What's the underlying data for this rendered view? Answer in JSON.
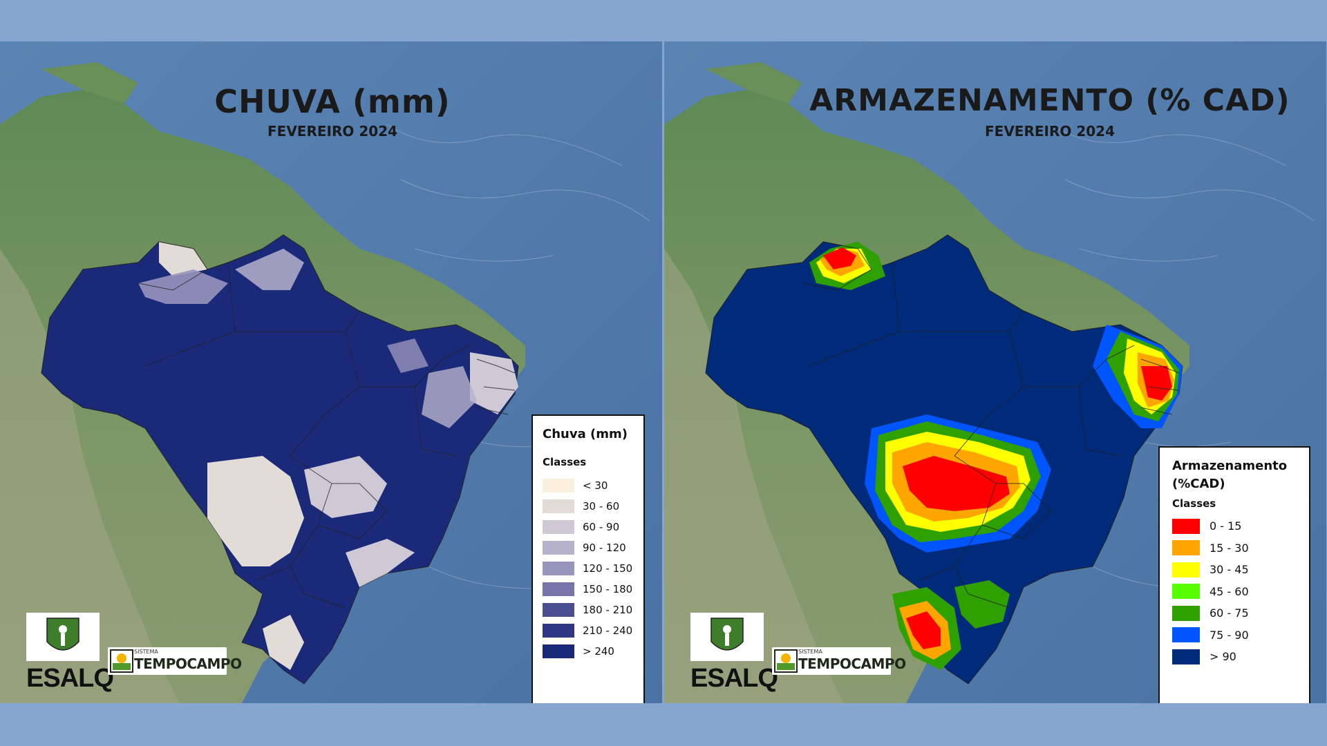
{
  "panels": [
    {
      "title": "CHUVA (mm)",
      "subtitle": "FEVEREIRO 2024",
      "legend": {
        "title": "Chuva (mm)",
        "classes_label": "Classes",
        "items": [
          {
            "label": "< 30",
            "color": "#fbefdd"
          },
          {
            "label": "30 - 60",
            "color": "#e3dcd6"
          },
          {
            "label": "60 - 90",
            "color": "#cfc9d5"
          },
          {
            "label": "90 - 120",
            "color": "#b6b2cc"
          },
          {
            "label": "120 - 150",
            "color": "#9895bd"
          },
          {
            "label": "150 - 180",
            "color": "#7674a9"
          },
          {
            "label": "180 - 210",
            "color": "#4b4d91"
          },
          {
            "label": "210 - 240",
            "color": "#2e3784"
          },
          {
            "label": "> 240",
            "color": "#1a2a78"
          }
        ]
      }
    },
    {
      "title": "ARMAZENAMENTO (% CAD)",
      "subtitle": "FEVEREIRO 2024",
      "legend": {
        "title": "Armazenamento (%CAD)",
        "classes_label": "Classes",
        "items": [
          {
            "label": "0 - 15",
            "color": "#ff0000"
          },
          {
            "label": "15 - 30",
            "color": "#ffa500"
          },
          {
            "label": "30 - 45",
            "color": "#ffff00"
          },
          {
            "label": "45 - 60",
            "color": "#55ff00"
          },
          {
            "label": "60 - 75",
            "color": "#2ea000"
          },
          {
            "label": "75 - 90",
            "color": "#0055ff"
          },
          {
            "label": "> 90",
            "color": "#002a7a"
          }
        ]
      }
    }
  ],
  "logos": {
    "esalq": "ESALQ",
    "tempocampo_small": "SISTEMA",
    "tempocampo_big": "TEMPOCAMPO"
  }
}
